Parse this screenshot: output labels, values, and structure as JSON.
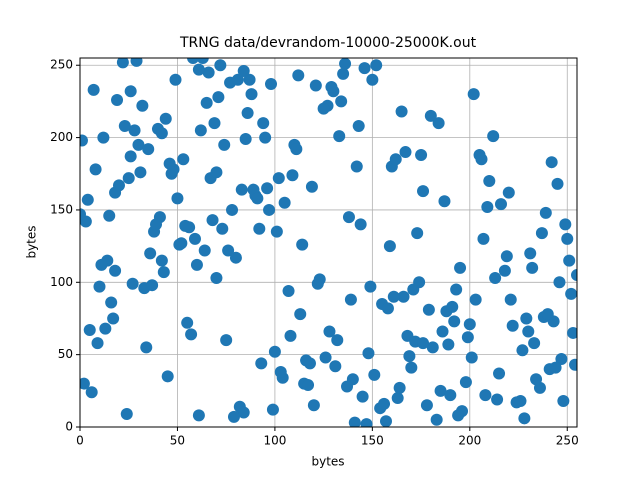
{
  "chart_data": {
    "type": "scatter",
    "title": "TRNG data/devrandom-10000-25000K.out",
    "x_label": "bytes",
    "y_label": "bytes",
    "color": "#1f77b4",
    "grid": true,
    "xlim": [
      0,
      255
    ],
    "ylim": [
      0,
      255
    ],
    "xticks": [
      0,
      50,
      100,
      150,
      200,
      250
    ],
    "yticks": [
      0,
      50,
      100,
      150,
      200,
      250
    ],
    "x": [
      12,
      45,
      78,
      203,
      150,
      99,
      231,
      5,
      167,
      88,
      34,
      210,
      122,
      61,
      249,
      180,
      17,
      140,
      72,
      195,
      226,
      53,
      108,
      3,
      171,
      134,
      241,
      90,
      28,
      159,
      66,
      188,
      115,
      47,
      219,
      9,
      143,
      82,
      252,
      176,
      38,
      127,
      201,
      70,
      160,
      22,
      236,
      105,
      55,
      183,
      94,
      14,
      245,
      132,
      77,
      208,
      41,
      166,
      118,
      1,
      191,
      59,
      228,
      146,
      31,
      100,
      174,
      86,
      215,
      50,
      137,
      7,
      253,
      110,
      64,
      196,
      25,
      155,
      239,
      81,
      43,
      170,
      125,
      18,
      222,
      92,
      147,
      58,
      205,
      33,
      116,
      250,
      74,
      163,
      11,
      186,
      130,
      48,
      233,
      97,
      19,
      178,
      139,
      68,
      212,
      104,
      243,
      36,
      152,
      84,
      199,
      27,
      162,
      121,
      56,
      247,
      89,
      6,
      184,
      113,
      142,
      71,
      224,
      39,
      168,
      95,
      255,
      16,
      131,
      61,
      207,
      83,
      148,
      24,
      193,
      112,
      52,
      238,
      175,
      2,
      128,
      44,
      216,
      103,
      157,
      76,
      30,
      181,
      246,
      67,
      10,
      154,
      87,
      229,
      119,
      40,
      198,
      138,
      60,
      172,
      242,
      29,
      107,
      185,
      51,
      165,
      93,
      220,
      13,
      144,
      79,
      251,
      35,
      126,
      202,
      4,
      158,
      69,
      234,
      109,
      187,
      57,
      145,
      23,
      213,
      98,
      173,
      46,
      240,
      120,
      8,
      161,
      73,
      227,
      136,
      42,
      194,
      85,
      254,
      114,
      151,
      26,
      209,
      65,
      179,
      102,
      37,
      248,
      129,
      75,
      218,
      49,
      164,
      15,
      189,
      123,
      62,
      237,
      96,
      141,
      32,
      200,
      111,
      80,
      244,
      156,
      20,
      135,
      221,
      54,
      169,
      91,
      232,
      42,
      117,
      192,
      0,
      149,
      63,
      206,
      101,
      214,
      26,
      176,
      84,
      230,
      133,
      70,
      18,
      190
    ],
    "series": [
      {
        "values": [
          200,
          35,
          150,
          88,
          240,
          12,
          120,
          67,
          190,
          230,
          55,
          170,
          99,
          8,
          140,
          215,
          75,
          33,
          250,
          110,
          18,
          185,
          63,
          142,
          95,
          225,
          40,
          160,
          205,
          125,
          245,
          80,
          30,
          175,
          118,
          58,
          208,
          14,
          92,
          163,
          135,
          222,
          48,
          103,
          180,
          252,
          27,
          155,
          72,
          5,
          210,
          115,
          168,
          60,
          238,
          22,
          145,
          90,
          44,
          198,
          83,
          130,
          6,
          248,
          176,
          52,
          100,
          217,
          37,
          158,
          28,
          233,
          65,
          195,
          122,
          11,
          172,
          85,
          148,
          240,
          107,
          41,
          220,
          162,
          70,
          137,
          2,
          255,
          188,
          96,
          46,
          130,
          195,
          20,
          112,
          66,
          232,
          178,
          58,
          150,
          226,
          15,
          88,
          143,
          201,
          34,
          73,
          120,
          250,
          10,
          62,
          99,
          185,
          236,
          138,
          47,
          164,
          24,
          210,
          78,
          180,
          228,
          17,
          140,
          63,
          200,
          105,
          86,
          42,
          247,
          130,
          164,
          51,
          9,
          95,
          243,
          127,
          76,
          188,
          30,
          66,
          213,
          154,
          38,
          4,
          122,
          195,
          55,
          100,
          172,
          97,
          13,
          240,
          75,
          166,
          206,
          31,
          145,
          112,
          59,
          183,
          253,
          94,
          25,
          126,
          218,
          44,
          162,
          68,
          140,
          7,
          115,
          192,
          48,
          230,
          157,
          82,
          210,
          33,
          174,
          156,
          64,
          21,
          208,
          103,
          237,
          134,
          182,
          78,
          15,
          178,
          90,
          137,
          53,
          251,
          115,
          8,
          199,
          43,
          126,
          36,
          187,
          152,
          224,
          81,
          172,
          98,
          18,
          235,
          60,
          108,
          240,
          27,
          146,
          57,
          102,
          205,
          134,
          165,
          3,
          222,
          71,
          192,
          117,
          41,
          16,
          167,
          244,
          88,
          139,
          49,
          158,
          110,
          203,
          29,
          73,
          147,
          97,
          255,
          185,
          135,
          19,
          232,
          58,
          246,
          66,
          201,
          176,
          108,
          22
        ]
      }
    ]
  }
}
